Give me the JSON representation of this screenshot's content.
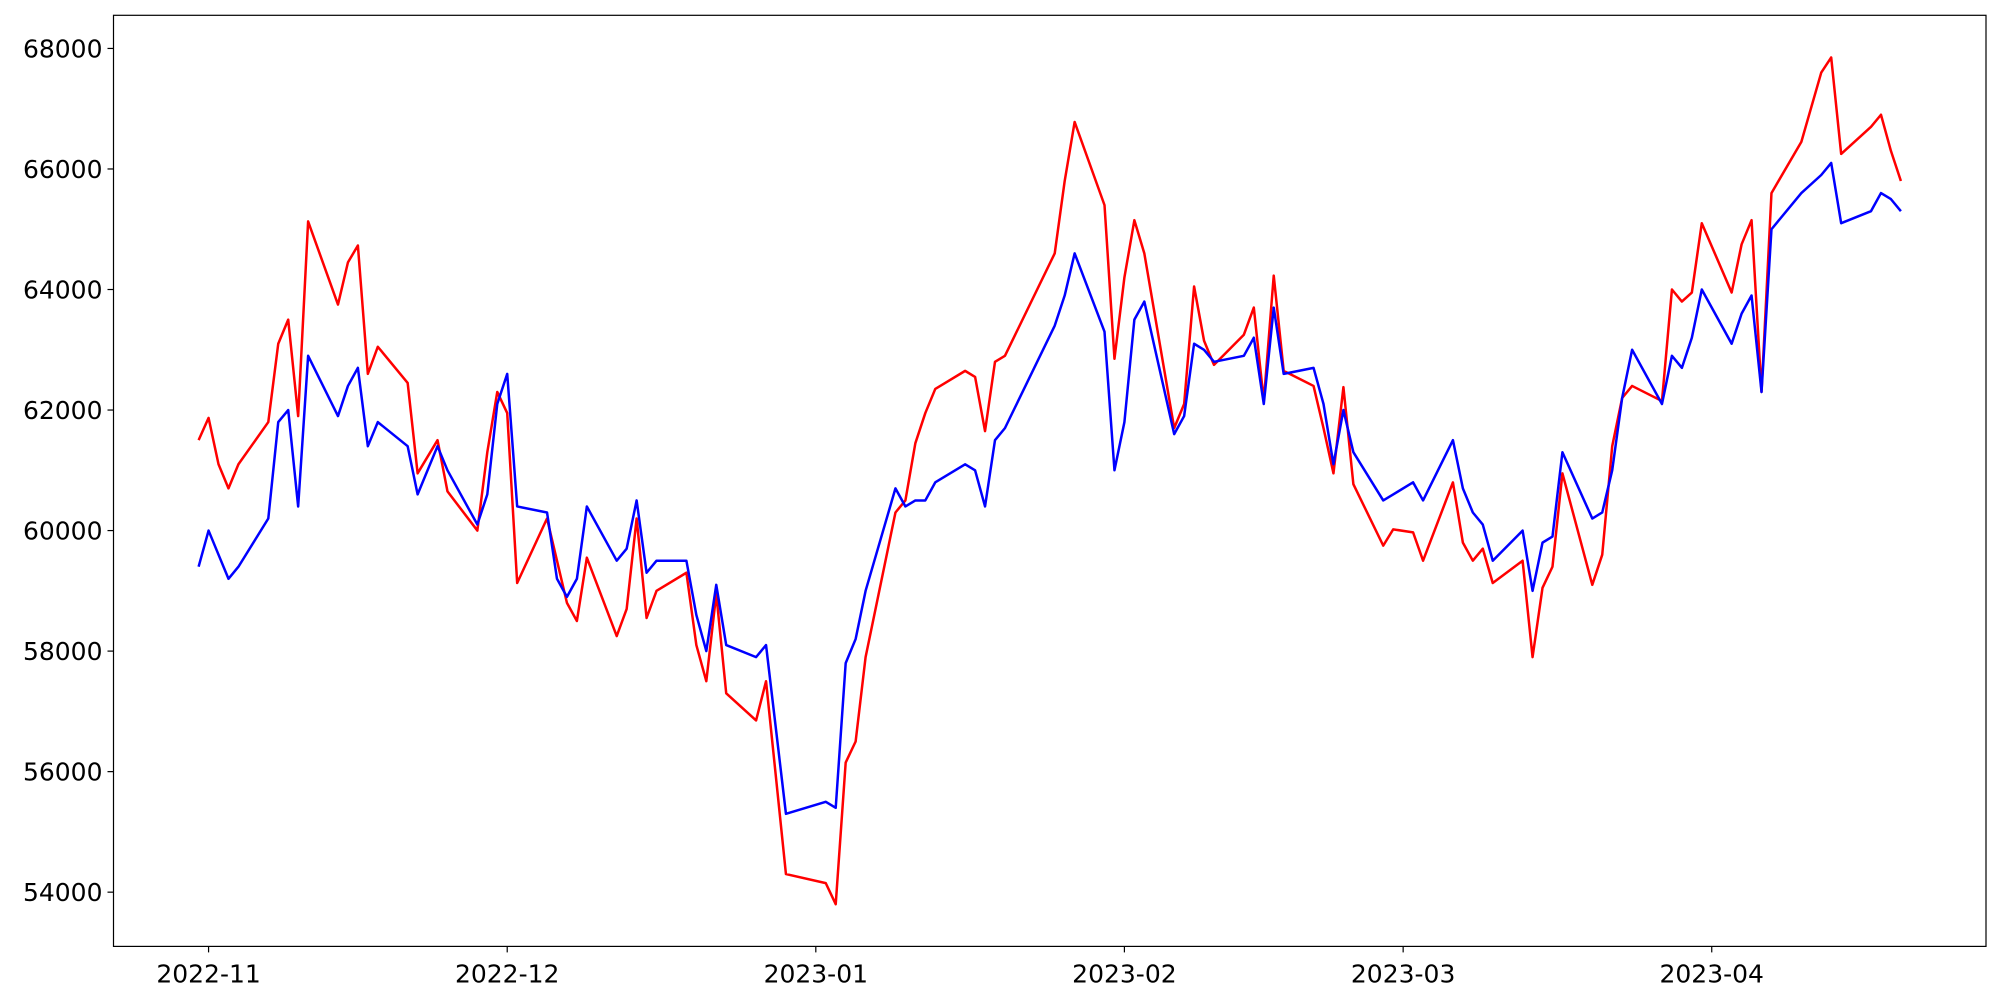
{
  "chart_data": {
    "type": "line",
    "x": [
      19296,
      19297,
      19298,
      19299,
      19300,
      19303,
      19304,
      19305,
      19306,
      19307,
      19310,
      19311,
      19312,
      19313,
      19314,
      19317,
      19318,
      19320,
      19321,
      19324,
      19325,
      19326,
      19327,
      19328,
      19331,
      19332,
      19333,
      19334,
      19335,
      19338,
      19339,
      19340,
      19341,
      19342,
      19345,
      19346,
      19347,
      19348,
      19349,
      19352,
      19353,
      19355,
      19359,
      19360,
      19361,
      19362,
      19363,
      19366,
      19367,
      19368,
      19369,
      19370,
      19373,
      19374,
      19375,
      19376,
      19377,
      19382,
      19383,
      19384,
      19387,
      19388,
      19389,
      19390,
      19391,
      19394,
      19395,
      19396,
      19397,
      19398,
      19401,
      19402,
      19403,
      19404,
      19405,
      19408,
      19409,
      19410,
      19411,
      19412,
      19415,
      19416,
      19418,
      19419,
      19422,
      19423,
      19424,
      19425,
      19426,
      19429,
      19430,
      19431,
      19432,
      19433,
      19436,
      19437,
      19438,
      19439,
      19440,
      19443,
      19444,
      19445,
      19446,
      19447,
      19450,
      19451,
      19452,
      19453,
      19454,
      19457,
      19459,
      19460,
      19461,
      19464,
      19465,
      19466,
      19467
    ],
    "series": [
      {
        "color": "#ff0000",
        "values": [
          61500,
          61870,
          61100,
          60700,
          61100,
          61800,
          63100,
          63500,
          61900,
          65130,
          63750,
          64450,
          64730,
          62600,
          63050,
          62450,
          60950,
          61500,
          60650,
          60000,
          61300,
          62300,
          61950,
          59130,
          60200,
          59500,
          58800,
          58500,
          59550,
          58250,
          58700,
          60200,
          58550,
          59000,
          59300,
          58100,
          57500,
          58950,
          57300,
          56850,
          57500,
          54300,
          54150,
          53800,
          56150,
          56500,
          57900,
          60300,
          60500,
          61450,
          61950,
          62350,
          62650,
          62550,
          61650,
          62800,
          62900,
          64600,
          65800,
          66780,
          65400,
          62850,
          64200,
          65150,
          64600,
          61700,
          62100,
          64050,
          63150,
          62750,
          63250,
          63700,
          62150,
          64230,
          62650,
          62400,
          61700,
          60950,
          62380,
          60770,
          59750,
          60020,
          59970,
          59500,
          60800,
          59800,
          59500,
          59700,
          59130,
          59500,
          57900,
          59050,
          59400,
          60950,
          59100,
          59600,
          61400,
          62200,
          62400,
          62150,
          64000,
          63800,
          63950,
          65100,
          63950,
          64750,
          65150,
          62300,
          65600,
          66450,
          67600,
          67850,
          66250,
          66700,
          66900,
          66300,
          65800
        ]
      },
      {
        "color": "#0000ff",
        "values": [
          59400,
          60000,
          59600,
          59200,
          59400,
          60200,
          61800,
          62000,
          60400,
          62900,
          61900,
          62400,
          62700,
          61400,
          61800,
          61400,
          60600,
          61400,
          61000,
          60100,
          60600,
          62100,
          62600,
          60400,
          60300,
          59200,
          58900,
          59200,
          60400,
          59500,
          59700,
          60500,
          59300,
          59500,
          59500,
          58600,
          58000,
          59100,
          58100,
          57900,
          58100,
          55300,
          55500,
          55400,
          57800,
          58200,
          59000,
          60700,
          60400,
          60500,
          60500,
          60800,
          61100,
          61000,
          60400,
          61500,
          61700,
          63400,
          63900,
          64600,
          63300,
          61000,
          61800,
          63500,
          63800,
          61600,
          61900,
          63100,
          63000,
          62800,
          62900,
          63200,
          62100,
          63700,
          62600,
          62700,
          62100,
          61100,
          62000,
          61300,
          60500,
          60600,
          60800,
          60500,
          61500,
          60700,
          60300,
          60100,
          59500,
          60000,
          59000,
          59800,
          59900,
          61300,
          60200,
          60300,
          61000,
          62200,
          63000,
          62100,
          62900,
          62700,
          63200,
          64000,
          63100,
          63600,
          63900,
          62300,
          65000,
          65600,
          65900,
          66100,
          65100,
          65300,
          65600,
          65500,
          65300
        ]
      }
    ],
    "xlim": [
      19287.45,
      19475.55
    ],
    "xticks": [
      {
        "value": 19297,
        "label": "2022-11"
      },
      {
        "value": 19327,
        "label": "2022-12"
      },
      {
        "value": 19358,
        "label": "2023-01"
      },
      {
        "value": 19389,
        "label": "2023-02"
      },
      {
        "value": 19417,
        "label": "2023-03"
      },
      {
        "value": 19448,
        "label": "2023-04"
      }
    ],
    "ylim": [
      53100,
      68550
    ],
    "yticks": [
      54000,
      56000,
      58000,
      60000,
      62000,
      64000,
      66000,
      68000
    ],
    "grid": false
  }
}
